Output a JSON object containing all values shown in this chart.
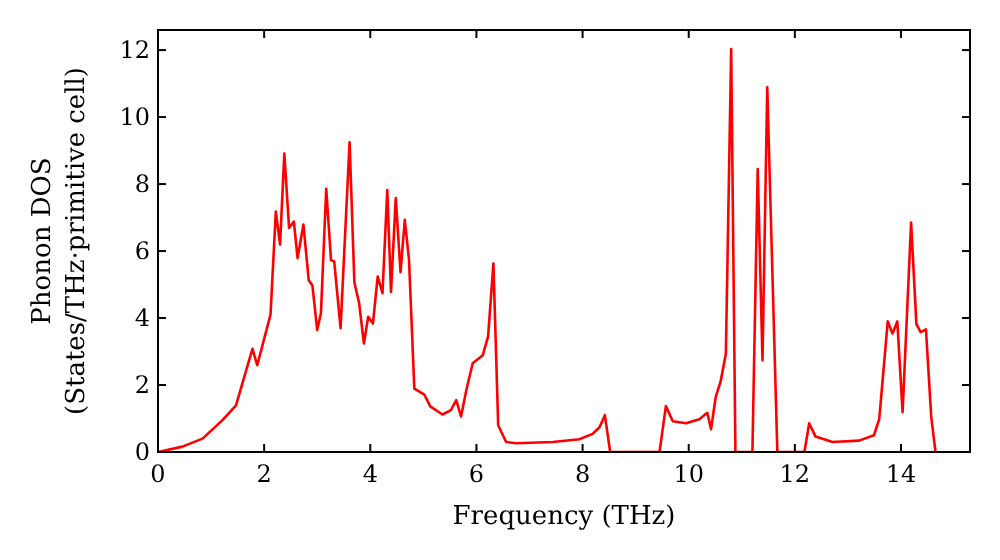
{
  "chart_data": {
    "type": "line",
    "xlabel": "Frequency (THz)",
    "ylabel": "Phonon DOS\n(States/THz·primitive cell)",
    "xlim": [
      0,
      15.3
    ],
    "ylim": [
      0,
      12.6
    ],
    "xticks": [
      0,
      2,
      4,
      6,
      8,
      10,
      12,
      14
    ],
    "yticks": [
      0,
      2,
      4,
      6,
      8,
      10,
      12
    ],
    "grid": false,
    "marker": "none",
    "line_style": "solid",
    "series": [
      {
        "color": "#ff0000",
        "x": [
          0,
          0.46,
          0.84,
          1.22,
          1.47,
          1.59,
          1.78,
          1.87,
          2.12,
          2.22,
          2.3,
          2.38,
          2.47,
          2.56,
          2.63,
          2.74,
          2.84,
          2.91,
          3.0,
          3.07,
          3.17,
          3.26,
          3.32,
          3.44,
          3.61,
          3.7,
          3.79,
          3.88,
          3.96,
          4.05,
          4.14,
          4.23,
          4.32,
          4.39,
          4.48,
          4.57,
          4.65,
          4.73,
          4.83,
          5.02,
          5.13,
          5.36,
          5.52,
          5.62,
          5.71,
          5.81,
          5.93,
          6.12,
          6.22,
          6.32,
          6.41,
          6.56,
          6.75,
          7.44,
          7.94,
          8.19,
          8.32,
          8.42,
          8.52,
          9.45,
          9.57,
          9.7,
          9.95,
          10.2,
          10.35,
          10.42,
          10.51,
          10.6,
          10.7,
          10.8,
          10.88,
          11.2,
          11.3,
          11.39,
          11.48,
          11.67,
          12.18,
          12.27,
          12.39,
          12.71,
          13.21,
          13.49,
          13.59,
          13.75,
          13.84,
          13.93,
          14.03,
          14.19,
          14.29,
          14.37,
          14.47,
          14.57,
          14.65
        ],
        "values": [
          0,
          0.16,
          0.4,
          0.96,
          1.39,
          2.05,
          3.08,
          2.59,
          4.1,
          7.18,
          6.19,
          8.91,
          6.69,
          6.88,
          5.79,
          6.79,
          5.13,
          4.97,
          3.64,
          4.14,
          7.86,
          5.73,
          5.69,
          3.7,
          9.25,
          5.07,
          4.44,
          3.24,
          4.04,
          3.84,
          5.24,
          4.74,
          7.82,
          4.78,
          7.58,
          5.37,
          6.93,
          5.73,
          1.89,
          1.71,
          1.36,
          1.12,
          1.25,
          1.55,
          1.06,
          1.85,
          2.65,
          2.89,
          3.45,
          5.63,
          0.8,
          0.3,
          0.26,
          0.3,
          0.38,
          0.54,
          0.74,
          1.1,
          0,
          0,
          1.37,
          0.92,
          0.86,
          0.98,
          1.17,
          0.68,
          1.65,
          2.1,
          2.93,
          12.03,
          0,
          0,
          8.45,
          2.74,
          10.89,
          0,
          0,
          0.86,
          0.46,
          0.3,
          0.34,
          0.5,
          0.98,
          3.9,
          3.54,
          3.9,
          1.19,
          6.85,
          3.82,
          3.58,
          3.66,
          1.04,
          0
        ]
      }
    ]
  }
}
